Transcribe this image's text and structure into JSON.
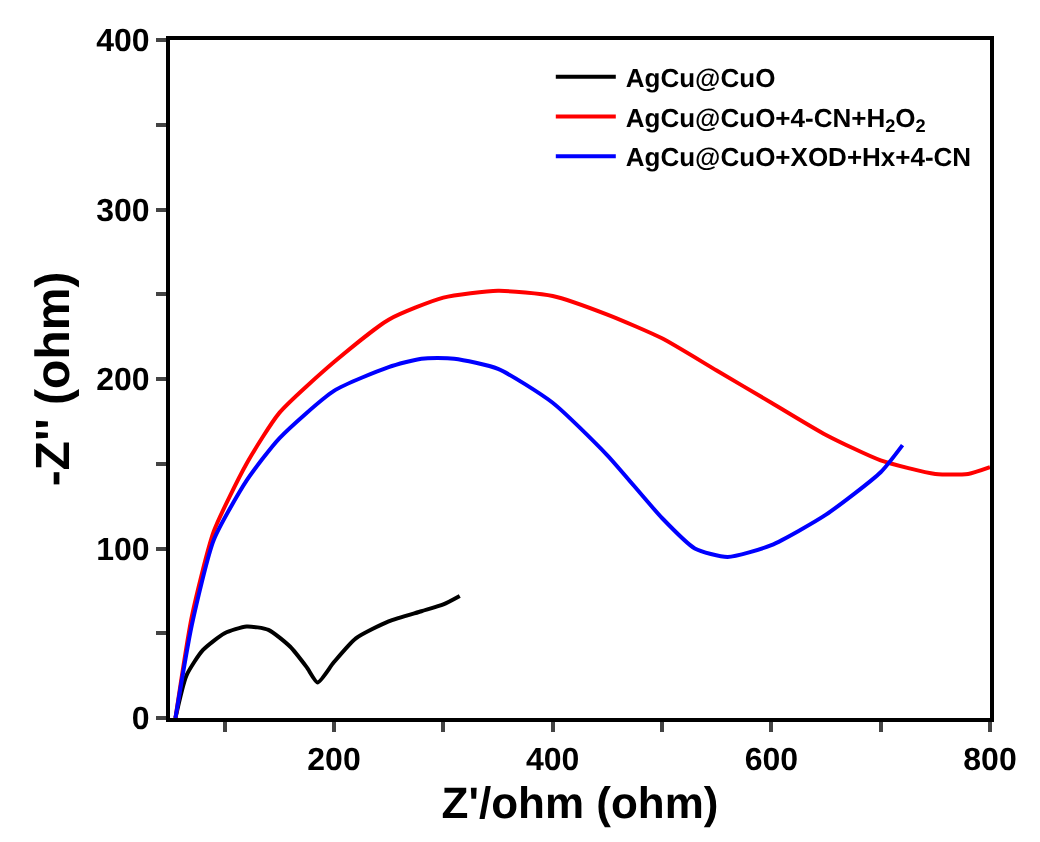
{
  "chart_data": {
    "type": "line",
    "xlabel": "Z'/ohm (ohm)",
    "ylabel": "-Z'' (ohm)",
    "xlim": [
      50,
      800
    ],
    "ylim": [
      0,
      400
    ],
    "xticks": [
      {
        "value": 100,
        "label": null
      },
      200,
      {
        "value": 300,
        "label": null
      },
      400,
      {
        "value": 500,
        "label": null
      },
      600,
      {
        "value": 700,
        "label": null
      },
      800
    ],
    "yticks": [
      0,
      {
        "value": 50,
        "label": null
      },
      100,
      {
        "value": 150,
        "label": null
      },
      200,
      {
        "value": 250,
        "label": null
      },
      300,
      {
        "value": 350,
        "label": null
      },
      400
    ],
    "legend": "top right",
    "marker": "none",
    "line_style": "solid",
    "series": [
      {
        "name": "AgCu@CuO",
        "color": "#000000",
        "x": [
          55,
          65,
          80,
          100,
          120,
          140,
          160,
          175,
          185,
          200,
          220,
          250,
          280,
          300,
          315
        ],
        "values": [
          0,
          25,
          40,
          50,
          54,
          52,
          42,
          30,
          21,
          33,
          47,
          57,
          63,
          67,
          72
        ]
      },
      {
        "name": "AgCu@CuO+4-CN+H$_{2}$O$_{2}$",
        "color": "#ff0000",
        "x": [
          55,
          70,
          90,
          120,
          150,
          200,
          250,
          300,
          350,
          400,
          450,
          500,
          550,
          600,
          650,
          700,
          750,
          780,
          800
        ],
        "values": [
          0,
          60,
          110,
          150,
          180,
          210,
          235,
          248,
          252,
          249,
          238,
          224,
          205,
          186,
          167,
          152,
          144,
          144,
          148
        ]
      },
      {
        "name": "AgCu@CuO+XOD+Hx+4-CN",
        "color": "#0000ff",
        "x": [
          55,
          70,
          90,
          120,
          150,
          200,
          250,
          280,
          310,
          350,
          400,
          450,
          500,
          530,
          560,
          600,
          650,
          700,
          720
        ],
        "values": [
          0,
          55,
          105,
          140,
          165,
          193,
          207,
          212,
          212,
          206,
          186,
          155,
          118,
          100,
          95,
          102,
          120,
          145,
          161
        ]
      }
    ]
  }
}
